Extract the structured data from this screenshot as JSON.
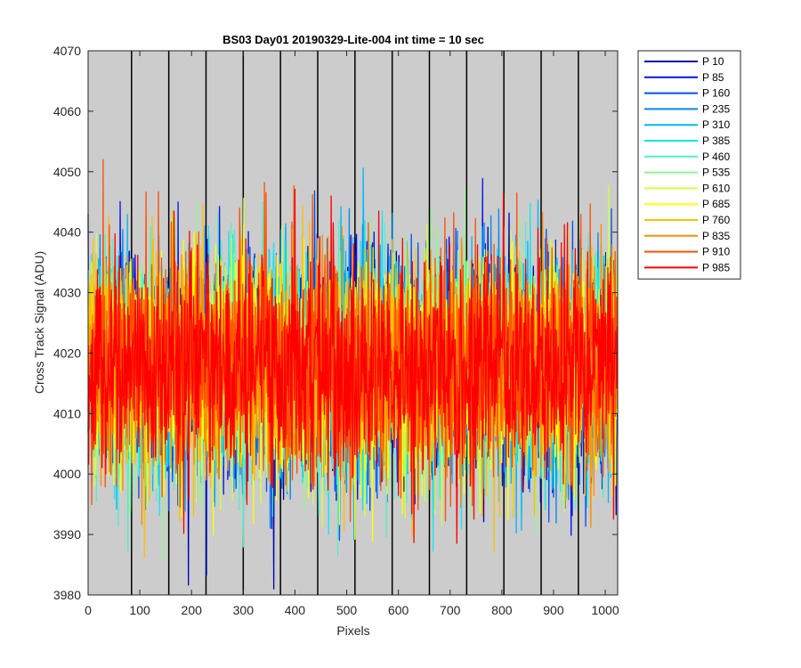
{
  "chart_data": {
    "type": "line",
    "title": "BS03 Day01 20190329-Lite-004 int time = 10 sec",
    "xlabel": "Pixels",
    "ylabel": "Cross Track Signal (ADU)",
    "xlim": [
      0,
      1024
    ],
    "ylim": [
      3980,
      4070
    ],
    "x_ticks": [
      0,
      100,
      200,
      300,
      400,
      500,
      600,
      700,
      800,
      900,
      1000
    ],
    "y_ticks": [
      3980,
      3990,
      4000,
      4010,
      4020,
      4030,
      4040,
      4050,
      4060,
      4070
    ],
    "vertical_lines_x": [
      84,
      156,
      228,
      300,
      372,
      444,
      516,
      588,
      660,
      732,
      804,
      876,
      948
    ],
    "background_color": "#cccccc",
    "grid": false,
    "legend_position": "outside-top-right",
    "noise_model": {
      "mean": 4018,
      "std": 9,
      "x_count": 1024
    },
    "series": [
      {
        "name": "P 10",
        "color": "#0000b0"
      },
      {
        "name": "P 85",
        "color": "#0018e0"
      },
      {
        "name": "P 160",
        "color": "#0050f0"
      },
      {
        "name": "P 235",
        "color": "#0088f8"
      },
      {
        "name": "P 310",
        "color": "#00b8ff"
      },
      {
        "name": "P 385",
        "color": "#10e8f0"
      },
      {
        "name": "P 460",
        "color": "#50f0c8"
      },
      {
        "name": "P 535",
        "color": "#90f890"
      },
      {
        "name": "P 610",
        "color": "#d0ff40"
      },
      {
        "name": "P 685",
        "color": "#ffff00"
      },
      {
        "name": "P 760",
        "color": "#ffc000"
      },
      {
        "name": "P 835",
        "color": "#ff8c00"
      },
      {
        "name": "P 910",
        "color": "#ff5000"
      },
      {
        "name": "P 985",
        "color": "#ff0000"
      }
    ]
  }
}
